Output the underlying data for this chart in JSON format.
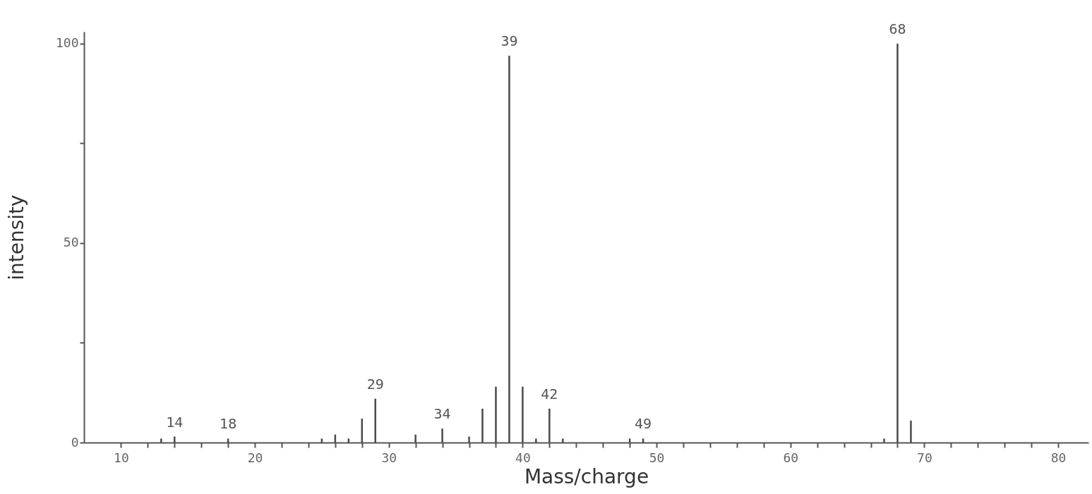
{
  "chart_data": {
    "type": "bar",
    "xlabel": "Mass/charge",
    "ylabel": "intensity",
    "series": [
      {
        "color": "#4a4a4a",
        "x": [
          13,
          14,
          18,
          25,
          26,
          27,
          28,
          29,
          32,
          34,
          36,
          37,
          38,
          39,
          40,
          41,
          42,
          43,
          48,
          49,
          67,
          68,
          69
        ],
        "values": [
          1,
          1.5,
          1,
          1,
          2,
          1,
          6,
          11,
          2,
          3.5,
          1.5,
          8.5,
          14,
          97,
          14,
          1,
          8.5,
          1,
          1,
          1,
          1,
          100,
          5.5
        ]
      }
    ],
    "xlim": [
      7.5,
      82
    ],
    "ylim": [
      0,
      103
    ],
    "xticks": [
      10,
      {
        "value": 12,
        "label": null
      },
      {
        "value": 14,
        "label": null
      },
      {
        "value": 16,
        "label": null
      },
      {
        "value": 18,
        "label": null
      },
      20,
      {
        "value": 22,
        "label": null
      },
      {
        "value": 24,
        "label": null
      },
      {
        "value": 26,
        "label": null
      },
      {
        "value": 28,
        "label": null
      },
      30,
      {
        "value": 32,
        "label": null
      },
      {
        "value": 34,
        "label": null
      },
      {
        "value": 36,
        "label": null
      },
      {
        "value": 38,
        "label": null
      },
      40,
      {
        "value": 42,
        "label": null
      },
      {
        "value": 44,
        "label": null
      },
      {
        "value": 46,
        "label": null
      },
      {
        "value": 48,
        "label": null
      },
      50,
      {
        "value": 52,
        "label": null
      },
      {
        "value": 54,
        "label": null
      },
      {
        "value": 56,
        "label": null
      },
      {
        "value": 58,
        "label": null
      },
      60,
      {
        "value": 62,
        "label": null
      },
      {
        "value": 64,
        "label": null
      },
      {
        "value": 66,
        "label": null
      },
      {
        "value": 68,
        "label": null
      },
      70,
      {
        "value": 72,
        "label": null
      },
      {
        "value": 74,
        "label": null
      },
      {
        "value": 76,
        "label": null
      },
      {
        "value": 78,
        "label": null
      },
      80
    ],
    "yticks": [
      0,
      {
        "value": 25,
        "label": null
      },
      50,
      {
        "value": 75,
        "label": null
      },
      100
    ],
    "annotations": [
      {
        "text": "14",
        "x": 14,
        "y": 1.5
      },
      {
        "text": "18",
        "x": 18,
        "y": 1
      },
      {
        "text": "29",
        "x": 29,
        "y": 11
      },
      {
        "text": "34",
        "x": 34,
        "y": 3.5
      },
      {
        "text": "39",
        "x": 39,
        "y": 97
      },
      {
        "text": "42",
        "x": 42,
        "y": 8.5
      },
      {
        "text": "49",
        "x": 49,
        "y": 1
      },
      {
        "text": "68",
        "x": 68,
        "y": 100
      }
    ],
    "grid": false
  }
}
